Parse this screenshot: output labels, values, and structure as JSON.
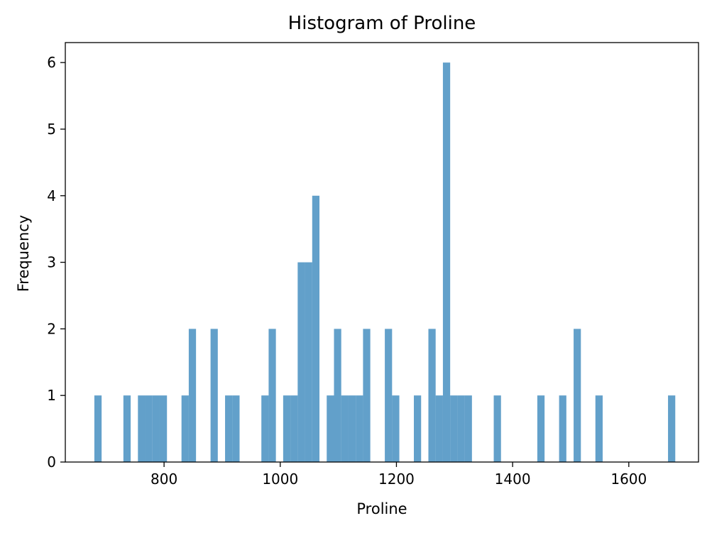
{
  "chart_data": {
    "type": "bar",
    "title": "Histogram of Proline",
    "xlabel": "Proline",
    "ylabel": "Frequency",
    "xlim": [
      630,
      1720
    ],
    "ylim": [
      0,
      6.3
    ],
    "xticks": [
      800,
      1000,
      1200,
      1400,
      1600
    ],
    "yticks": [
      0,
      1,
      2,
      3,
      4,
      5,
      6
    ],
    "bin_width": 12.5,
    "bar_color": "#1f77b4",
    "bar_opacity": 0.7,
    "grid": false,
    "bins": [
      {
        "x": 680,
        "value": 1
      },
      {
        "x": 730,
        "value": 1
      },
      {
        "x": 755,
        "value": 1
      },
      {
        "x": 767.5,
        "value": 1
      },
      {
        "x": 780,
        "value": 1
      },
      {
        "x": 792.5,
        "value": 1
      },
      {
        "x": 830,
        "value": 1
      },
      {
        "x": 842.5,
        "value": 2
      },
      {
        "x": 880,
        "value": 2
      },
      {
        "x": 905,
        "value": 1
      },
      {
        "x": 917.5,
        "value": 1
      },
      {
        "x": 967.5,
        "value": 1
      },
      {
        "x": 980,
        "value": 2
      },
      {
        "x": 1005,
        "value": 1
      },
      {
        "x": 1017.5,
        "value": 1
      },
      {
        "x": 1030,
        "value": 3
      },
      {
        "x": 1042.5,
        "value": 3
      },
      {
        "x": 1055,
        "value": 4
      },
      {
        "x": 1080,
        "value": 1
      },
      {
        "x": 1092.5,
        "value": 2
      },
      {
        "x": 1105,
        "value": 1
      },
      {
        "x": 1117.5,
        "value": 1
      },
      {
        "x": 1130,
        "value": 1
      },
      {
        "x": 1142.5,
        "value": 2
      },
      {
        "x": 1180,
        "value": 2
      },
      {
        "x": 1192.5,
        "value": 1
      },
      {
        "x": 1230,
        "value": 1
      },
      {
        "x": 1255,
        "value": 2
      },
      {
        "x": 1267.5,
        "value": 1
      },
      {
        "x": 1280,
        "value": 6
      },
      {
        "x": 1292.5,
        "value": 1
      },
      {
        "x": 1305,
        "value": 1
      },
      {
        "x": 1317.5,
        "value": 1
      },
      {
        "x": 1367.5,
        "value": 1
      },
      {
        "x": 1442.5,
        "value": 1
      },
      {
        "x": 1480,
        "value": 1
      },
      {
        "x": 1505,
        "value": 2
      },
      {
        "x": 1542.5,
        "value": 1
      },
      {
        "x": 1667.5,
        "value": 1
      }
    ]
  }
}
